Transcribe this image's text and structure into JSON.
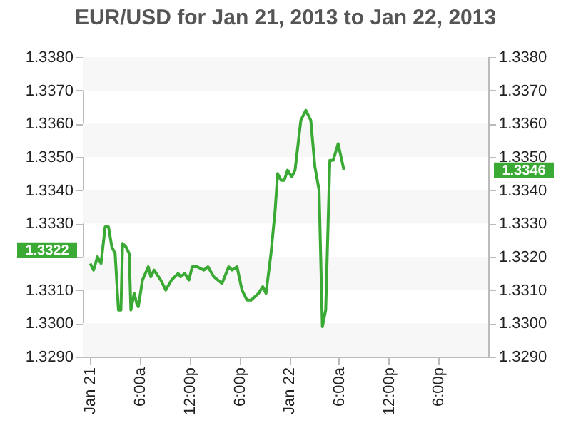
{
  "chart_data": {
    "type": "line",
    "title": "EUR/USD for Jan 21, 2013 to Jan 22, 2013",
    "series": [
      {
        "color": "#3aaa35",
        "x": [
          "2013-01-21T00:00",
          "2013-01-21T00:24",
          "2013-01-21T00:52",
          "2013-01-21T01:18",
          "2013-01-21T01:48",
          "2013-01-21T02:12",
          "2013-01-21T02:36",
          "2013-01-21T03:00",
          "2013-01-21T03:24",
          "2013-01-21T03:42",
          "2013-01-21T03:54",
          "2013-01-21T04:18",
          "2013-01-21T04:42",
          "2013-01-21T04:54",
          "2013-01-21T05:18",
          "2013-01-21T05:36",
          "2013-01-21T05:48",
          "2013-01-21T06:18",
          "2013-01-21T07:00",
          "2013-01-21T07:18",
          "2013-01-21T07:42",
          "2013-01-21T08:30",
          "2013-01-21T09:06",
          "2013-01-21T09:48",
          "2013-01-21T10:36",
          "2013-01-21T10:54",
          "2013-01-21T11:24",
          "2013-01-21T11:54",
          "2013-01-21T12:18",
          "2013-01-21T12:54",
          "2013-01-21T13:42",
          "2013-01-21T14:12",
          "2013-01-21T14:54",
          "2013-01-21T15:54",
          "2013-01-21T16:42",
          "2013-01-21T17:06",
          "2013-01-21T17:42",
          "2013-01-21T18:18",
          "2013-01-21T18:54",
          "2013-01-21T19:24",
          "2013-01-21T20:18",
          "2013-01-21T20:48",
          "2013-01-21T21:12",
          "2013-01-21T21:48",
          "2013-01-21T22:18",
          "2013-01-21T22:36",
          "2013-01-21T23:00",
          "2013-01-21T23:24",
          "2013-01-21T23:48",
          "2013-01-22T00:18",
          "2013-01-22T00:42",
          "2013-01-22T01:24",
          "2013-01-22T02:00",
          "2013-01-22T02:36",
          "2013-01-22T03:06",
          "2013-01-22T03:36",
          "2013-01-22T04:00",
          "2013-01-22T04:24",
          "2013-01-22T04:54",
          "2013-01-22T05:18",
          "2013-01-22T05:54",
          "2013-01-22T06:36"
        ],
        "values": [
          1.3318,
          1.3316,
          1.332,
          1.3318,
          1.3329,
          1.3329,
          1.3323,
          1.3321,
          1.3304,
          1.3304,
          1.3324,
          1.3323,
          1.3321,
          1.3304,
          1.3309,
          1.3306,
          1.3305,
          1.3313,
          1.3317,
          1.3314,
          1.3316,
          1.3313,
          1.331,
          1.3313,
          1.3315,
          1.3314,
          1.3315,
          1.3313,
          1.3317,
          1.3317,
          1.3316,
          1.3317,
          1.3314,
          1.3312,
          1.3317,
          1.3316,
          1.3317,
          1.331,
          1.3307,
          1.3307,
          1.3309,
          1.3311,
          1.3309,
          1.3321,
          1.3334,
          1.3345,
          1.3343,
          1.3343,
          1.3346,
          1.3344,
          1.3346,
          1.3361,
          1.3364,
          1.3361,
          1.3347,
          1.334,
          1.3299,
          1.3304,
          1.3349,
          1.3349,
          1.3354,
          1.3346
        ]
      }
    ],
    "xlim": [
      "2013-01-20T23:06",
      "2013-01-23T00:00"
    ],
    "xticks": [
      {
        "value": "2013-01-21T00:00",
        "label": "Jan 21"
      },
      {
        "value": "2013-01-21T06:00",
        "label": "6:00a"
      },
      {
        "value": "2013-01-21T12:00",
        "label": "12:00p"
      },
      {
        "value": "2013-01-21T18:00",
        "label": "6:00p"
      },
      {
        "value": "2013-01-22T00:00",
        "label": "Jan 22"
      },
      {
        "value": "2013-01-22T06:00",
        "label": "6:00a"
      },
      {
        "value": "2013-01-22T12:00",
        "label": "12:00p"
      },
      {
        "value": "2013-01-22T18:00",
        "label": "6:00p"
      }
    ],
    "ylim": [
      1.329,
      1.338
    ],
    "yticks": [
      {
        "value": 1.329,
        "label": "1.3290"
      },
      {
        "value": 1.33,
        "label": "1.3300"
      },
      {
        "value": 1.331,
        "label": "1.3310"
      },
      {
        "value": 1.332,
        "label": null
      },
      {
        "value": 1.333,
        "label": "1.3330"
      },
      {
        "value": 1.334,
        "label": "1.3340"
      },
      {
        "value": 1.335,
        "label": "1.3350"
      },
      {
        "value": 1.336,
        "label": "1.3360"
      },
      {
        "value": 1.337,
        "label": "1.3370"
      },
      {
        "value": 1.338,
        "label": "1.3380"
      }
    ],
    "y2lim": [
      1.329,
      1.338
    ],
    "y2ticks": [
      {
        "value": 1.329,
        "label": "1.3290"
      },
      {
        "value": 1.33,
        "label": "1.3300"
      },
      {
        "value": 1.331,
        "label": "1.3310"
      },
      {
        "value": 1.332,
        "label": "1.3320"
      },
      {
        "value": 1.333,
        "label": "1.3330"
      },
      {
        "value": 1.334,
        "label": "1.3340"
      },
      {
        "value": 1.335,
        "label": "1.3350"
      },
      {
        "value": 1.336,
        "label": "1.3360"
      },
      {
        "value": 1.337,
        "label": "1.3370"
      },
      {
        "value": 1.338,
        "label": "1.3380"
      }
    ],
    "annotations": [
      "1.3322",
      "1.3346"
    ],
    "marker": "none",
    "line_style": "solid"
  }
}
